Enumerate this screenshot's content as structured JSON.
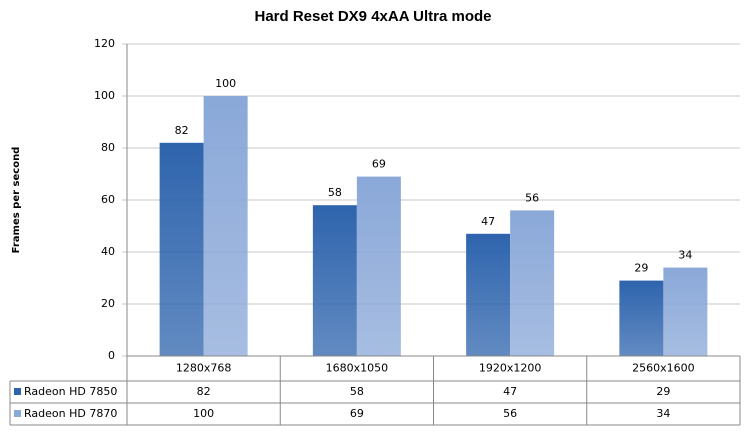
{
  "chart_data": {
    "type": "bar",
    "title": "Hard Reset DX9 4xAA Ultra mode",
    "y_label": "Frames per second",
    "categories": [
      "1280x768",
      "1680x1050",
      "1920x1200",
      "2560x1600"
    ],
    "series": [
      {
        "name": "Radeon HD 7850",
        "color": "#2e64ad",
        "values": [
          82,
          58,
          47,
          29
        ]
      },
      {
        "name": "Radeon HD 7870",
        "color": "#8aa8d8",
        "values": [
          100,
          69,
          56,
          34
        ]
      }
    ],
    "ylim": [
      0,
      120
    ],
    "yticks": [
      0,
      20,
      40,
      60,
      80,
      100,
      120
    ],
    "grid": true,
    "data_table": true
  }
}
